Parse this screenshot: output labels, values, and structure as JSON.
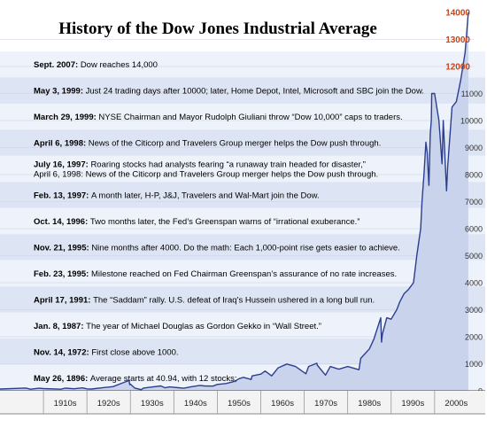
{
  "chart_data": {
    "type": "area",
    "title": "History of the Dow Jones Industrial Average",
    "xlabel": "",
    "ylabel": "",
    "xlim": [
      1900,
      2009
    ],
    "ylim": [
      0,
      14000
    ],
    "x_tick_labels": [
      "1910s",
      "1920s",
      "1930s",
      "1940s",
      "1950s",
      "1960s",
      "1970s",
      "1980s",
      "1990s",
      "2000s"
    ],
    "y_tick_labels": [
      "0",
      "1000",
      "2000",
      "3000",
      "4000",
      "5000",
      "6000",
      "7000",
      "8000",
      "9000",
      "10000",
      "11000",
      "12000",
      "13000",
      "14000"
    ],
    "series": [
      {
        "x": [
          1896.4,
          1900,
          1905,
          1906,
          1907,
          1909,
          1910,
          1914,
          1915,
          1917,
          1919,
          1920,
          1921,
          1924,
          1926,
          1928,
          1929.7,
          1929.85,
          1930,
          1931,
          1932.5,
          1933,
          1935,
          1937,
          1938,
          1939,
          1941,
          1942.3,
          1944,
          1946,
          1947,
          1949,
          1950,
          1952,
          1954,
          1955,
          1956,
          1957.8,
          1958,
          1960,
          1961,
          1962.5,
          1964,
          1966,
          1968,
          1970.4,
          1971,
          1972.9,
          1973,
          1974.9,
          1976,
          1978,
          1980,
          1982.6,
          1983,
          1985,
          1986,
          1987.6,
          1987.8,
          1988,
          1989,
          1990,
          1991.3,
          1992,
          1993,
          1994,
          1995.15,
          1995.9,
          1996.8,
          1997.1,
          1997.55,
          1998,
          1998.3,
          1998.7,
          1999,
          1999.25,
          1999.35,
          2000,
          2001,
          2001.7,
          2002,
          2002.75,
          2003,
          2004,
          2005,
          2006,
          2007,
          2007.75
        ],
        "y": [
          40.94,
          66,
          95,
          100,
          60,
          95,
          82,
          58,
          99,
          74,
          107,
          72,
          64,
          120,
          155,
          280,
          381,
          230,
          250,
          100,
          42,
          100,
          140,
          180,
          110,
          145,
          115,
          95,
          150,
          200,
          180,
          175,
          235,
          270,
          350,
          450,
          500,
          420,
          550,
          615,
          730,
          550,
          850,
          990,
          900,
          630,
          900,
          1020,
          950,
          580,
          900,
          800,
          900,
          780,
          1200,
          1550,
          1900,
          2700,
          1800,
          2100,
          2700,
          2650,
          3000,
          3300,
          3600,
          3750,
          4000,
          5000,
          6000,
          7000,
          8000,
          9200,
          8800,
          7600,
          9500,
          10000,
          11000,
          11000,
          10000,
          8400,
          10000,
          7400,
          8300,
          10500,
          10700,
          11500,
          12500,
          14000
        ]
      }
    ],
    "annotations": [
      {
        "date": "Sept. 2007:",
        "text": "Dow reaches 14,000"
      },
      {
        "date": "May 3, 1999:",
        "text": "Just 24 trading days after 10000; later, Home Depot, Intel, Microsoft and SBC join the Dow."
      },
      {
        "date": "March 29, 1999:",
        "text": "NYSE Chairman and Mayor Rudolph Giuliani throw “Dow 10,000” caps to traders."
      },
      {
        "date": "April 6, 1998:",
        "text": "News of the Citicorp and Travelers Group merger helps the Dow push through."
      },
      {
        "date": "July 16, 1997:",
        "text": "Roaring stocks had analysts fearing “a runaway train headed for disaster,”",
        "text2": "April 6, 1998: News of the Citicorp and Travelers Group merger helps the Dow push through."
      },
      {
        "date": "Feb. 13, 1997:",
        "text": "A month later, H-P, J&J, Travelers and Wal-Mart join the Dow."
      },
      {
        "date": "Oct. 14, 1996:",
        "text": "Two months later, the Fed’s Greenspan warns of “irrational exuberance.”"
      },
      {
        "date": "Nov. 21, 1995:",
        "text": "Nine months after 4000. Do the math: Each 1,000-point rise gets easier to achieve."
      },
      {
        "date": "Feb. 23, 1995:",
        "text": "Milestone reached on Fed Chairman Greenspan’s assurance of no rate increases."
      },
      {
        "date": "April 17, 1991:",
        "text": "The “Saddam” rally. U.S. defeat of Iraq’s Hussein ushered in a long bull run."
      },
      {
        "date": "Jan. 8, 1987:",
        "text": "The year of Michael Douglas as Gordon Gekko in “Wall Street.”"
      },
      {
        "date": "Nov. 14, 1972:",
        "text": "First close above 1000."
      },
      {
        "date": "May 26, 1896:",
        "text": "Average starts at 40.94, with 12 stocks;"
      }
    ],
    "colors": {
      "line": "#2c3f8f",
      "band_light": "#eef2fa",
      "band_dark": "#dde4f3",
      "highlight": "#c4471a"
    }
  }
}
